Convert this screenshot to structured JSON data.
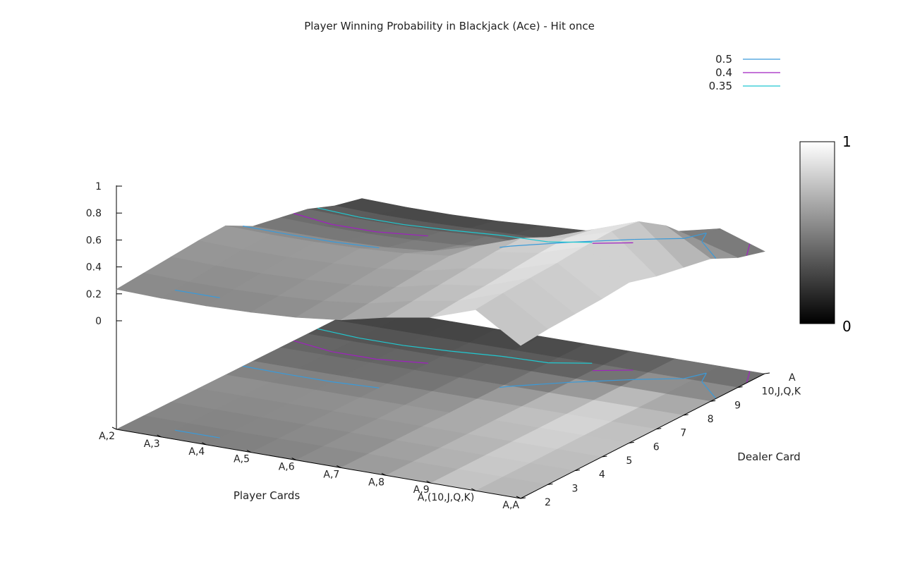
{
  "chart_data": {
    "type": "surface3d",
    "title": "Player Winning Probability in Blackjack (Ace) - Hit once",
    "xlabel": "Player Cards",
    "ylabel": "Dealer Card",
    "x_categories": [
      "A,2",
      "A,3",
      "A,4",
      "A,5",
      "A,6",
      "A,7",
      "A,8",
      "A,9",
      "A,(10,J,Q,K)",
      "A,A"
    ],
    "y_categories": [
      "2",
      "3",
      "4",
      "5",
      "6",
      "7",
      "8",
      "9",
      "10,J,Q,K",
      "A"
    ],
    "zlim": [
      0,
      1
    ],
    "z_ticks": [
      "0",
      "0.2",
      "0.4",
      "0.6",
      "0.8",
      "1"
    ],
    "colorbar": {
      "min_label": "0",
      "max_label": "1",
      "low_color": "#000000",
      "high_color": "#ffffff"
    },
    "legend": {
      "placement": "top-right",
      "entries": [
        {
          "label": "0.5",
          "color": "#3a9ad9"
        },
        {
          "label": "0.4",
          "color": "#a020c0"
        },
        {
          "label": "0.35",
          "color": "#20c8d0"
        }
      ]
    },
    "z_values": [
      [
        0.5,
        0.52,
        0.54,
        0.56,
        0.57,
        0.46,
        0.42,
        0.38,
        0.3,
        0.25
      ],
      [
        0.49,
        0.51,
        0.53,
        0.55,
        0.56,
        0.46,
        0.41,
        0.37,
        0.29,
        0.24
      ],
      [
        0.49,
        0.51,
        0.53,
        0.55,
        0.56,
        0.46,
        0.41,
        0.37,
        0.29,
        0.24
      ],
      [
        0.5,
        0.52,
        0.54,
        0.56,
        0.57,
        0.47,
        0.42,
        0.38,
        0.3,
        0.25
      ],
      [
        0.52,
        0.54,
        0.56,
        0.58,
        0.59,
        0.5,
        0.44,
        0.4,
        0.31,
        0.27
      ],
      [
        0.56,
        0.58,
        0.6,
        0.62,
        0.63,
        0.6,
        0.48,
        0.4,
        0.32,
        0.29
      ],
      [
        0.64,
        0.66,
        0.68,
        0.7,
        0.72,
        0.72,
        0.62,
        0.46,
        0.36,
        0.35
      ],
      [
        0.7,
        0.72,
        0.73,
        0.75,
        0.77,
        0.78,
        0.74,
        0.58,
        0.42,
        0.4
      ],
      [
        0.82,
        0.84,
        0.85,
        0.86,
        0.88,
        0.89,
        0.86,
        0.72,
        0.52,
        0.48
      ],
      [
        0.6,
        0.62,
        0.63,
        0.64,
        0.66,
        0.6,
        0.56,
        0.52,
        0.42,
        0.36
      ]
    ]
  }
}
